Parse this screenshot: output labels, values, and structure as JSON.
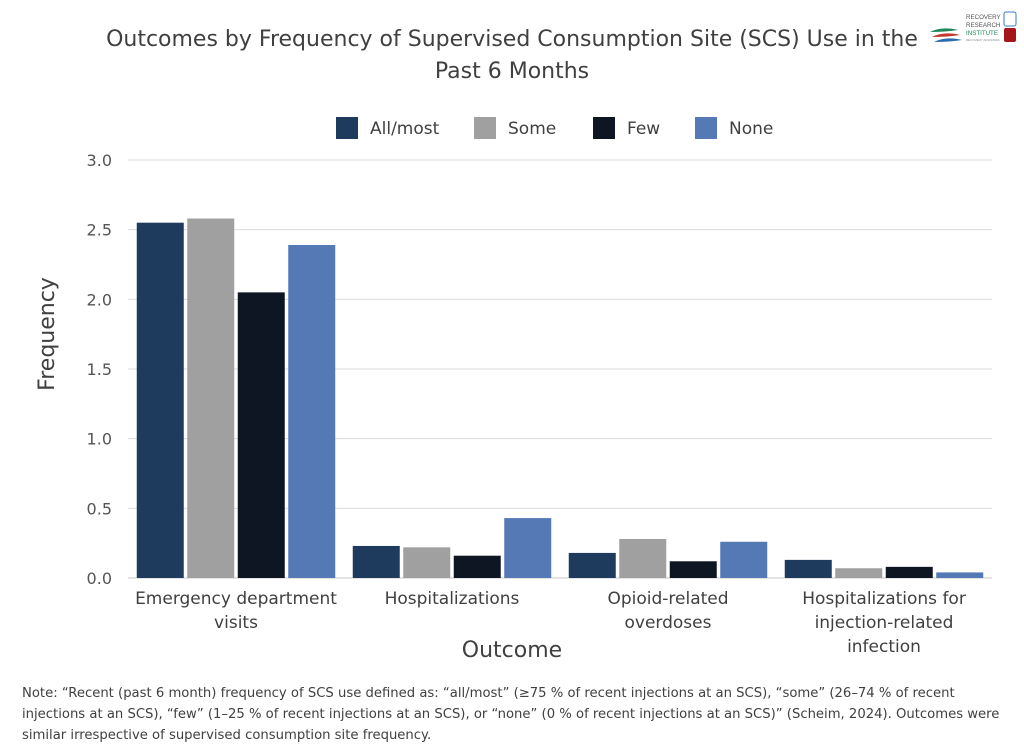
{
  "title": "Outcomes by Frequency of Supervised Consumption Site (SCS) Use in the Past 6 Months",
  "logo": {
    "text_lines": [
      "RECOVERY",
      "RESEARCH",
      "INSTITUTE"
    ],
    "tagline": "RECOVERY ADVANCES"
  },
  "chart_data": {
    "type": "bar",
    "title": "Outcomes by Frequency of Supervised Consumption Site (SCS) Use in the Past 6 Months",
    "xlabel": "Outcome",
    "ylabel": "Frequency",
    "ylim": [
      0,
      3.0
    ],
    "yticks": [
      "0.0",
      "0.5",
      "1.0",
      "1.5",
      "2.0",
      "2.5",
      "3.0"
    ],
    "grid": true,
    "legend_position": "top",
    "categories": [
      [
        "Emergency department",
        "visits"
      ],
      [
        "Hospitalizations"
      ],
      [
        "Opioid-related",
        "overdoses"
      ],
      [
        "Hospitalizations for",
        "injection-related",
        "infection"
      ]
    ],
    "series": [
      {
        "name": "All/most",
        "color": "#1e3a5c",
        "values": [
          2.55,
          0.23,
          0.18,
          0.13
        ]
      },
      {
        "name": "Some",
        "color": "#a0a0a0",
        "values": [
          2.58,
          0.22,
          0.28,
          0.07
        ]
      },
      {
        "name": "Few",
        "color": "#0f1623",
        "values": [
          2.05,
          0.16,
          0.12,
          0.08
        ]
      },
      {
        "name": "None",
        "color": "#5579b5",
        "values": [
          2.39,
          0.43,
          0.26,
          0.04
        ]
      }
    ]
  },
  "note": "Note: “Recent (past 6 month) frequency of SCS use defined as: “all/most” (≥75 % of recent injections at an SCS), “some” (26–74 % of recent injections at an SCS), “few” (1–25 % of recent injections at an SCS), or “none” (0 % of recent injections at an SCS)” (Scheim, 2024). Outcomes were similar irrespective of supervised consumption site frequency."
}
